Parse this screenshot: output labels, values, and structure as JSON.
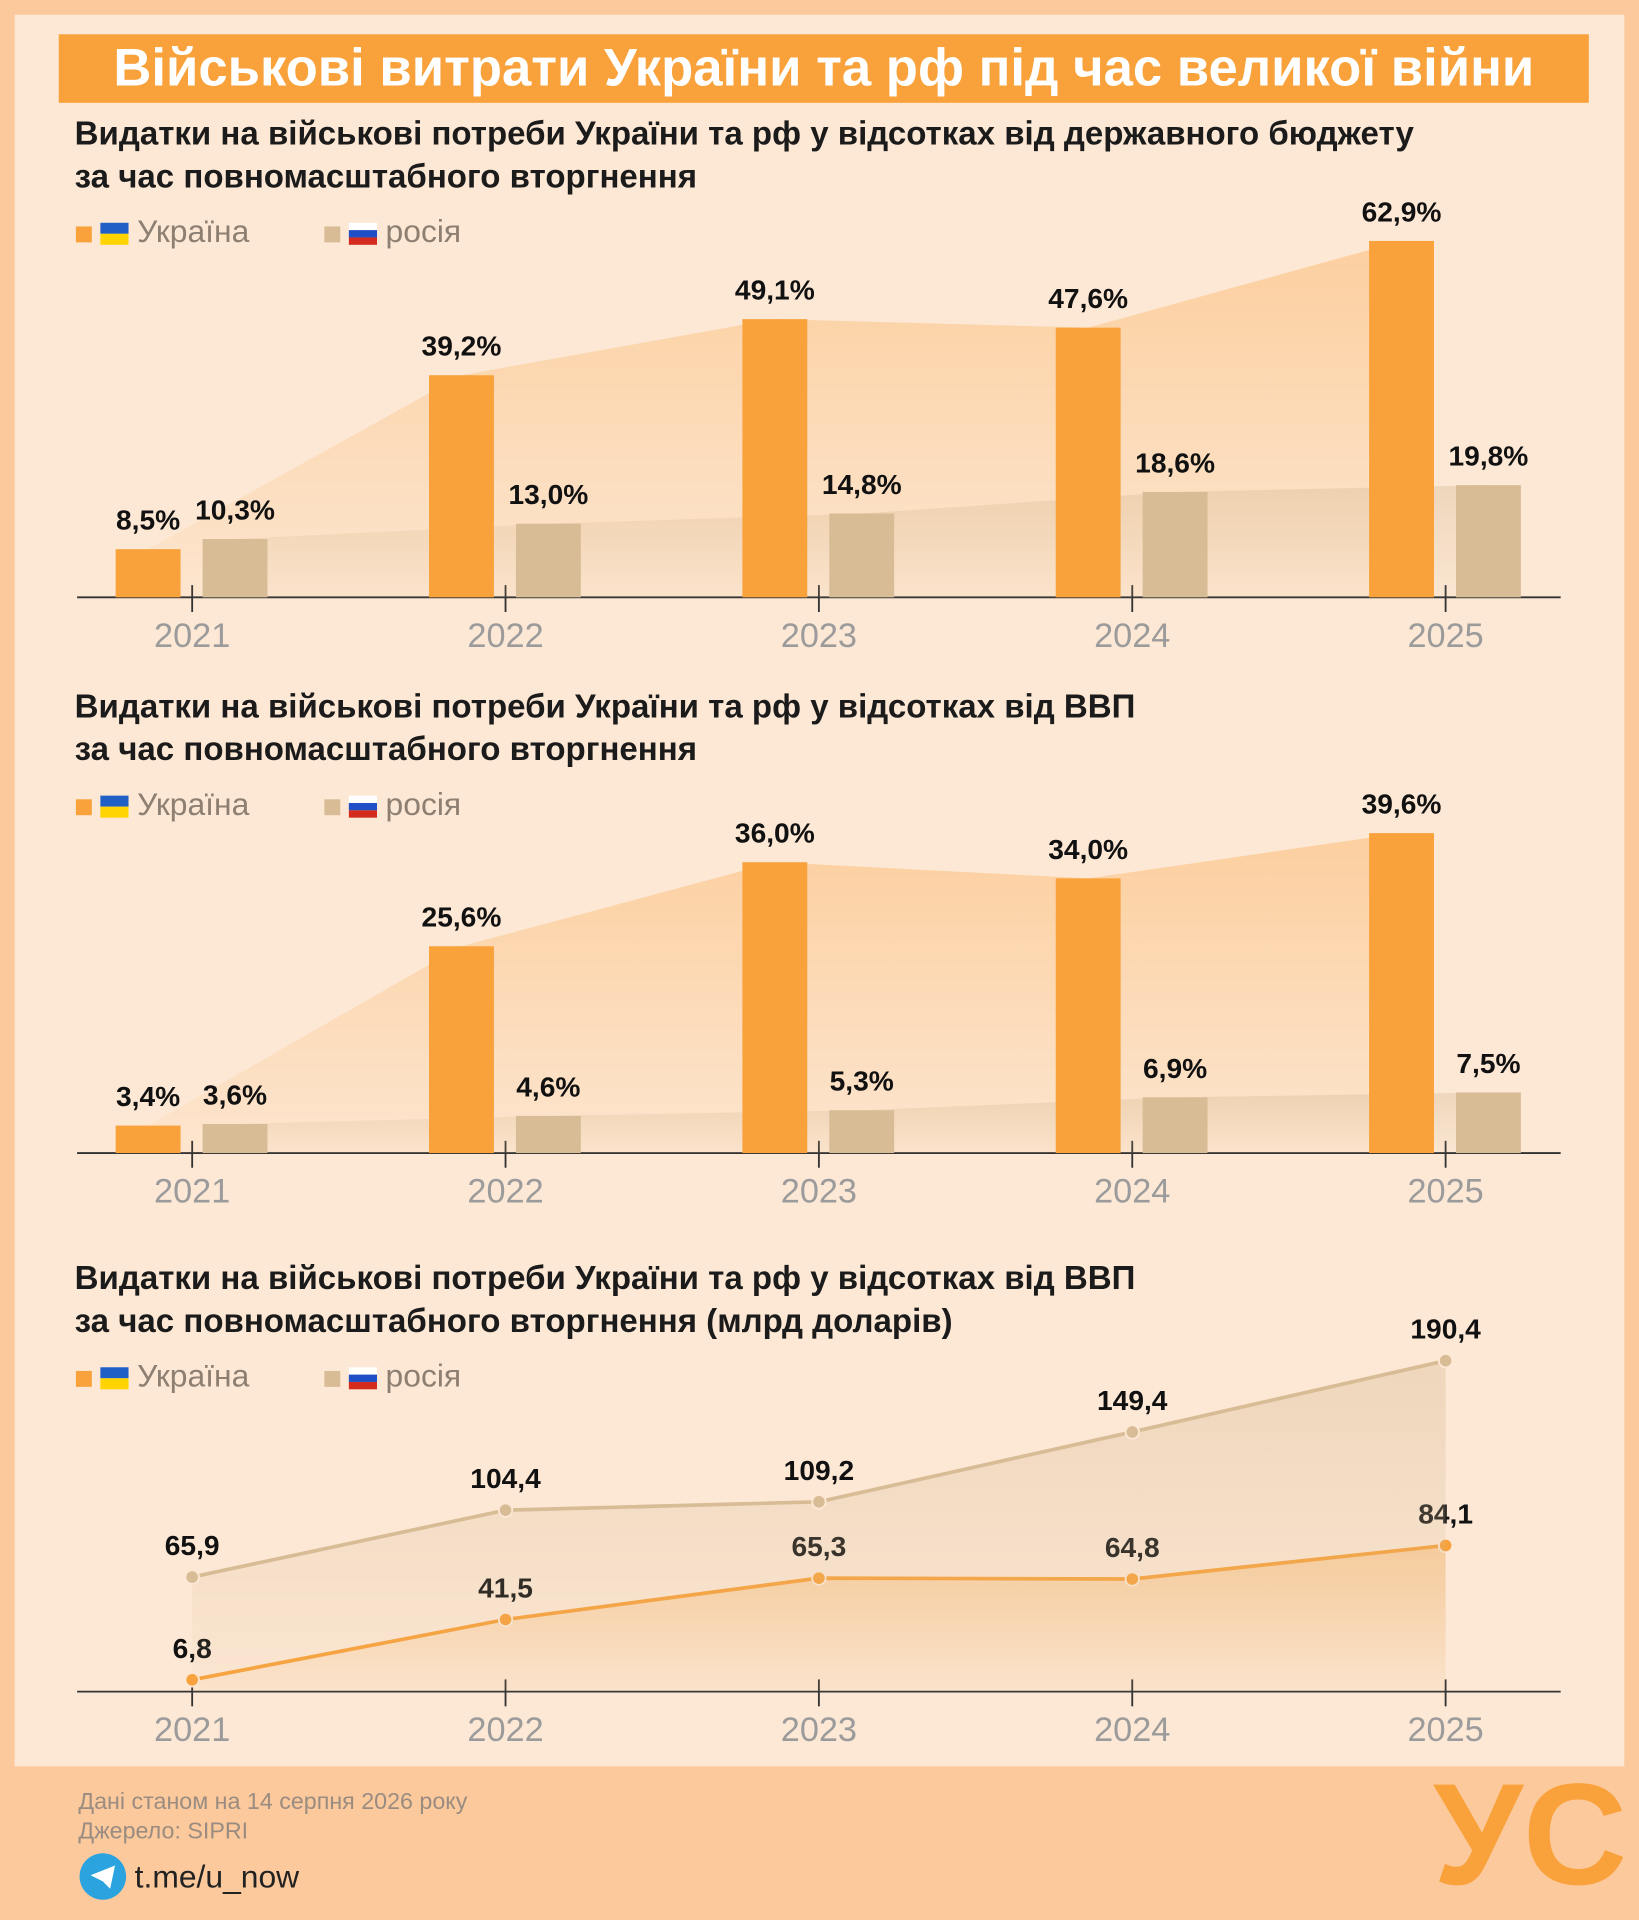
{
  "header": {
    "title": "Військові витрати України та рф під час великої війни"
  },
  "chart_data": [
    {
      "type": "bar",
      "title": "Видатки на військові потреби України та рф у відсотках від державного бюджету\nза час повномасштабного вторгнення",
      "categories": [
        "2021",
        "2022",
        "2023",
        "2024",
        "2025"
      ],
      "series": [
        {
          "name": "Україна",
          "color": "#f9a13a",
          "values": [
            8.5,
            39.2,
            49.1,
            47.6,
            62.9
          ],
          "value_labels": [
            "8,5%",
            "39,2%",
            "49,1%",
            "47,6%",
            "62,9%"
          ]
        },
        {
          "name": "росія",
          "color": "#d7bc95",
          "values": [
            10.3,
            13.0,
            14.8,
            18.6,
            19.8
          ],
          "value_labels": [
            "10,3%",
            "13,0%",
            "14,8%",
            "18,6%",
            "19,8%"
          ]
        }
      ],
      "ylim": [
        0,
        70
      ]
    },
    {
      "type": "bar",
      "title": "Видатки на військові потреби України та рф у відсотках від ВВП\nза час повномасштабного вторгнення",
      "categories": [
        "2021",
        "2022",
        "2023",
        "2024",
        "2025"
      ],
      "series": [
        {
          "name": "Україна",
          "color": "#f9a13a",
          "values": [
            3.4,
            25.6,
            36.0,
            34.0,
            39.6
          ],
          "value_labels": [
            "3,4%",
            "25,6%",
            "36,0%",
            "34,0%",
            "39,6%"
          ]
        },
        {
          "name": "росія",
          "color": "#d7bc95",
          "values": [
            3.6,
            4.6,
            5.3,
            6.9,
            7.5
          ],
          "value_labels": [
            "3,6%",
            "4,6%",
            "5,3%",
            "6,9%",
            "7,5%"
          ]
        }
      ],
      "ylim": [
        0,
        45
      ]
    },
    {
      "type": "line",
      "title": "Видатки на військові потреби України та рф у відсотках від ВВП\nза час повномасштабного вторгнення (млрд доларів)",
      "categories": [
        "2021",
        "2022",
        "2023",
        "2024",
        "2025"
      ],
      "series": [
        {
          "name": "Україна",
          "color": "#f9a13a",
          "values": [
            6.8,
            41.5,
            65.3,
            64.8,
            84.1
          ],
          "value_labels": [
            "6,8",
            "41,5",
            "65,3",
            "64,8",
            "84,1"
          ]
        },
        {
          "name": "росія",
          "color": "#d7bc95",
          "values": [
            65.9,
            104.4,
            109.2,
            149.4,
            190.4
          ],
          "value_labels": [
            "65,9",
            "104,4",
            "109,2",
            "149,4",
            "190,4"
          ]
        }
      ],
      "ylim": [
        0,
        200
      ]
    }
  ],
  "footer": {
    "date": "Дані станом на 14 серпня 2026 року",
    "source": "Джерело: SIPRI",
    "link": "t.me/u_now",
    "logo": "УС"
  }
}
